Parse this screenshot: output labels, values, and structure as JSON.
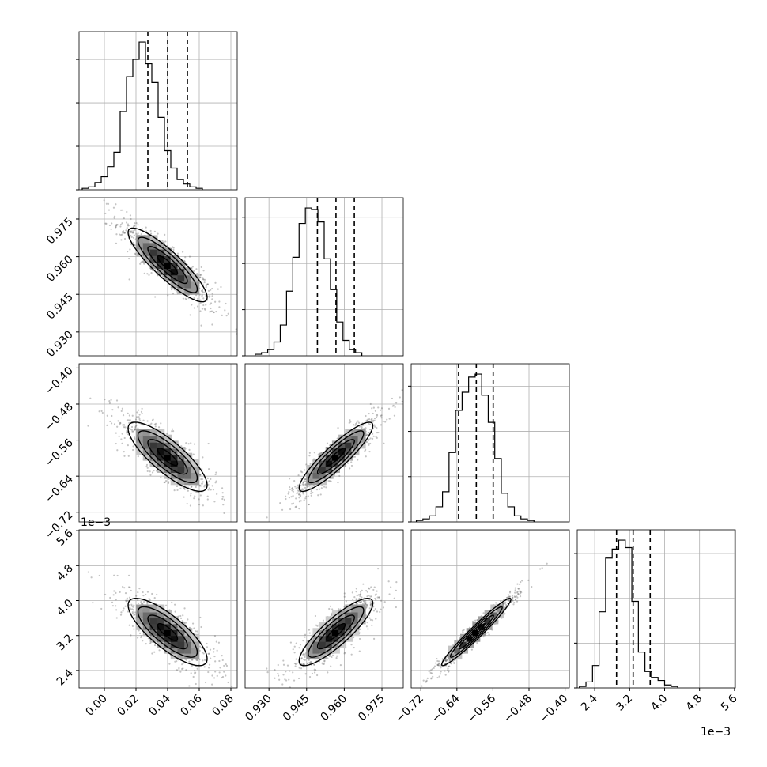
{
  "chart_data": {
    "type": "corner",
    "title": "",
    "parameters": [
      {
        "index": 0,
        "range": [
          -0.016,
          0.084
        ],
        "ticks": [
          0.0,
          0.02,
          0.04,
          0.06,
          0.08
        ],
        "tick_labels": [
          "0.00",
          "0.02",
          "0.04",
          "0.06",
          "0.08"
        ],
        "quantiles": [
          0.0275,
          0.04,
          0.0525
        ],
        "scale_label": ""
      },
      {
        "index": 1,
        "range": [
          0.9205,
          0.9835
        ],
        "ticks": [
          0.93,
          0.945,
          0.96,
          0.975
        ],
        "tick_labels": [
          "0.930",
          "0.945",
          "0.960",
          "0.975"
        ],
        "quantiles": [
          0.9493,
          0.9567,
          0.964
        ],
        "scale_label": ""
      },
      {
        "index": 2,
        "range": [
          -0.7415,
          -0.3905
        ],
        "ticks": [
          -0.72,
          -0.64,
          -0.56,
          -0.48,
          -0.4
        ],
        "tick_labels": [
          "−0.72",
          "−0.64",
          "−0.56",
          "−0.48",
          "−0.40"
        ],
        "quantiles": [
          -0.6363,
          -0.597,
          -0.5595
        ],
        "scale_label": ""
      },
      {
        "index": 3,
        "range": [
          2.0,
          5.62
        ],
        "ticks": [
          2.4,
          3.2,
          4.0,
          4.8,
          5.6
        ],
        "tick_labels": [
          "2.4",
          "3.2",
          "4.0",
          "4.8",
          "5.6"
        ],
        "quantiles": [
          2.9,
          3.28,
          3.67
        ],
        "scale_label": "1e−3"
      }
    ],
    "histograms": [
      {
        "param": 0,
        "bin_edges_start": -0.014,
        "bin_width": 0.004,
        "counts": [
          1,
          2,
          5,
          9,
          16,
          26,
          54,
          78,
          90,
          102,
          87,
          74,
          50,
          27,
          15,
          7,
          4,
          2,
          1
        ]
      },
      {
        "param": 1,
        "bin_edges_start": 0.9245,
        "bin_width": 0.0025,
        "counts": [
          1,
          2,
          4,
          9,
          20,
          42,
          64,
          86,
          96,
          95,
          87,
          63,
          43,
          22,
          10,
          4,
          2
        ]
      },
      {
        "param": 2,
        "bin_edges_start": -0.73,
        "bin_width": 0.0145,
        "counts": [
          1,
          2,
          4,
          10,
          20,
          46,
          74,
          86,
          96,
          98,
          84,
          66,
          42,
          19,
          10,
          4,
          2,
          1
        ]
      },
      {
        "param": 3,
        "bin_edges_start": 2.05,
        "bin_width": 0.15,
        "counts": [
          1,
          4,
          15,
          51,
          87,
          93,
          99,
          94,
          58,
          24,
          11,
          7,
          5,
          2,
          1
        ]
      }
    ],
    "correlations": {
      "0-1": -0.88,
      "0-2": -0.82,
      "1-2": 0.9,
      "0-3": -0.8,
      "1-3": 0.86,
      "2-3": 0.97
    },
    "grid": true,
    "diagonal_quantile_lines": "dashed",
    "contour_levels": 3
  }
}
